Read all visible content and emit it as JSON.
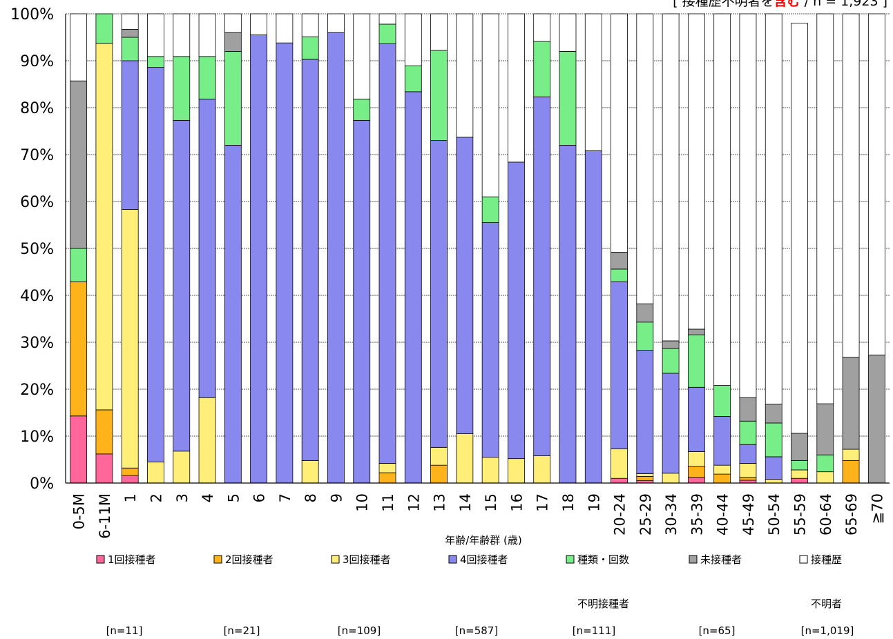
{
  "chart_data": {
    "type": "bar",
    "stacked": true,
    "title": "",
    "xlabel": "年齢/年齢群 (歳)",
    "ylabel": "",
    "ylim": [
      0,
      100
    ],
    "yticks": [
      "0%",
      "10%",
      "20%",
      "30%",
      "40%",
      "50%",
      "60%",
      "70%",
      "80%",
      "90%",
      "100%"
    ],
    "note": {
      "prefix": "[ 接種歴不明者を",
      "emphasis": "含む",
      "suffix": " / n = 1,923 ]"
    },
    "categories": [
      "0-5M",
      "6-11M",
      "1",
      "2",
      "3",
      "4",
      "5",
      "6",
      "7",
      "8",
      "9",
      "10",
      "11",
      "12",
      "13",
      "14",
      "15",
      "16",
      "17",
      "18",
      "19",
      "20-24",
      "25-29",
      "30-34",
      "35-39",
      "40-44",
      "45-49",
      "50-54",
      "55-59",
      "60-64",
      "65-69",
      "≧70"
    ],
    "series": [
      {
        "name": "1回接種者",
        "n_label": "[n=11]",
        "color": "#ff6699",
        "values": [
          14.3,
          6.2,
          1.6,
          0,
          0,
          0,
          0,
          0,
          0,
          0,
          0,
          0,
          0,
          0,
          0,
          0,
          0,
          0,
          0,
          0,
          0,
          1.0,
          0.5,
          0,
          1.2,
          0,
          0.6,
          0,
          1.0,
          0,
          0,
          0
        ]
      },
      {
        "name": "2回接種者",
        "n_label": "[n=21]",
        "color": "#ffb31a",
        "values": [
          28.6,
          9.4,
          1.6,
          0,
          0,
          0,
          0,
          0,
          0,
          0,
          0,
          0,
          2.2,
          0,
          3.8,
          0,
          0,
          0,
          0,
          0,
          0,
          0,
          0.9,
          0,
          2.4,
          1.9,
          0.6,
          0,
          0,
          0,
          4.8,
          0
        ]
      },
      {
        "name": "3回接種者",
        "n_label": "[n=109]",
        "color": "#ffee77",
        "values": [
          0,
          78.1,
          55.1,
          4.5,
          6.8,
          18.2,
          0,
          0,
          0,
          4.8,
          0,
          0,
          2.0,
          0,
          3.8,
          10.5,
          5.5,
          5.2,
          5.8,
          0,
          0,
          6.3,
          0.6,
          2.1,
          3.1,
          1.9,
          3.0,
          0.8,
          1.8,
          2.4,
          2.4,
          0
        ]
      },
      {
        "name": "4回接種者",
        "n_label": "[n=587]",
        "color": "#8888ee",
        "values": [
          0,
          0,
          31.7,
          84.1,
          70.5,
          63.6,
          72.0,
          95.5,
          93.8,
          85.5,
          96.0,
          77.3,
          89.4,
          83.4,
          65.4,
          63.2,
          50.0,
          63.2,
          76.5,
          72.0,
          70.8,
          35.6,
          26.3,
          21.3,
          13.7,
          10.4,
          4.0,
          4.8,
          0,
          0,
          0,
          0
        ]
      },
      {
        "name": "種類・回数\n不明接種者",
        "n_label": "[n=111]",
        "color": "#77ee88",
        "values": [
          7.1,
          6.3,
          5.0,
          2.3,
          13.6,
          9.1,
          20.0,
          0,
          0,
          4.8,
          0,
          4.5,
          4.2,
          5.5,
          19.2,
          0,
          5.5,
          0,
          11.8,
          20.0,
          0,
          2.7,
          6.0,
          5.3,
          11.2,
          6.6,
          5.0,
          7.2,
          2.0,
          3.6,
          0,
          0
        ]
      },
      {
        "name": "未接種者",
        "n_label": "[n=65]",
        "color": "#a0a0a0",
        "values": [
          35.7,
          0,
          1.7,
          0,
          0,
          0,
          4.0,
          0,
          0,
          0,
          0,
          0,
          0,
          0,
          0,
          0,
          0,
          0,
          0,
          0,
          0,
          3.6,
          3.9,
          1.6,
          1.2,
          0,
          5.0,
          4.0,
          5.8,
          10.9,
          19.6,
          27.3
        ]
      },
      {
        "name": "接種歴\n不明者",
        "n_label": "[n=1,019]",
        "color": "#ffffff",
        "values": [
          14.3,
          0,
          3.3,
          9.1,
          9.1,
          9.1,
          4.0,
          4.5,
          6.2,
          4.9,
          4.0,
          18.2,
          2.2,
          11.1,
          7.8,
          26.3,
          39.0,
          31.6,
          5.9,
          8.0,
          29.2,
          50.8,
          61.8,
          69.7,
          67.2,
          79.2,
          81.8,
          83.2,
          87.4,
          83.1,
          73.2,
          72.7
        ]
      }
    ],
    "legend_position": "bottom",
    "grid": true
  }
}
